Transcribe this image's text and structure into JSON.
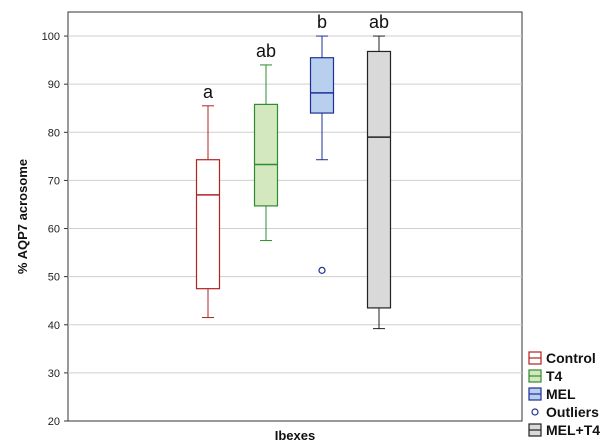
{
  "chart_data": {
    "type": "box",
    "xlabel": "Ibexes",
    "ylabel": "% AQP7 acrosome",
    "ylim": [
      20,
      105
    ],
    "yticks": [
      20,
      30,
      40,
      50,
      60,
      70,
      80,
      90,
      100
    ],
    "grid": true,
    "legend_position": "bottom-right",
    "series": [
      {
        "name": "Control",
        "significance": "a",
        "whisker_low": 41.5,
        "q1": 47.5,
        "median": 67.0,
        "q3": 74.3,
        "whisker_high": 85.5,
        "outliers": [],
        "color": "#b22222",
        "fill": "#ffffff"
      },
      {
        "name": "T4",
        "significance": "ab",
        "whisker_low": 57.5,
        "q1": 64.7,
        "median": 73.3,
        "q3": 85.8,
        "whisker_high": 94.0,
        "outliers": [],
        "color": "#2e8b2e",
        "fill": "#d3e8bf"
      },
      {
        "name": "MEL",
        "significance": "b",
        "whisker_low": 74.3,
        "q1": 84.0,
        "median": 88.2,
        "q3": 95.5,
        "whisker_high": 100.0,
        "outliers": [
          51.3
        ],
        "color": "#1f2f99",
        "fill": "#b8cfee"
      },
      {
        "name": "MEL+T4",
        "significance": "ab",
        "whisker_low": 39.2,
        "q1": 43.5,
        "median": 79.0,
        "q3": 96.8,
        "whisker_high": 100.0,
        "outliers": [],
        "color": "#222222",
        "fill": "#d9d9d9"
      }
    ],
    "legend": [
      {
        "label": "Control",
        "kind": "box",
        "color": "#b22222",
        "fill": "#ffffff"
      },
      {
        "label": "T4",
        "kind": "box",
        "color": "#2e8b2e",
        "fill": "#d3e8bf"
      },
      {
        "label": "MEL",
        "kind": "box",
        "color": "#1f2f99",
        "fill": "#b8cfee"
      },
      {
        "label": "Outliers",
        "kind": "outlier",
        "color": "#1f2f99",
        "fill": "#ffffff"
      },
      {
        "label": "MEL+T4",
        "kind": "box",
        "color": "#222222",
        "fill": "#d9d9d9"
      }
    ]
  }
}
